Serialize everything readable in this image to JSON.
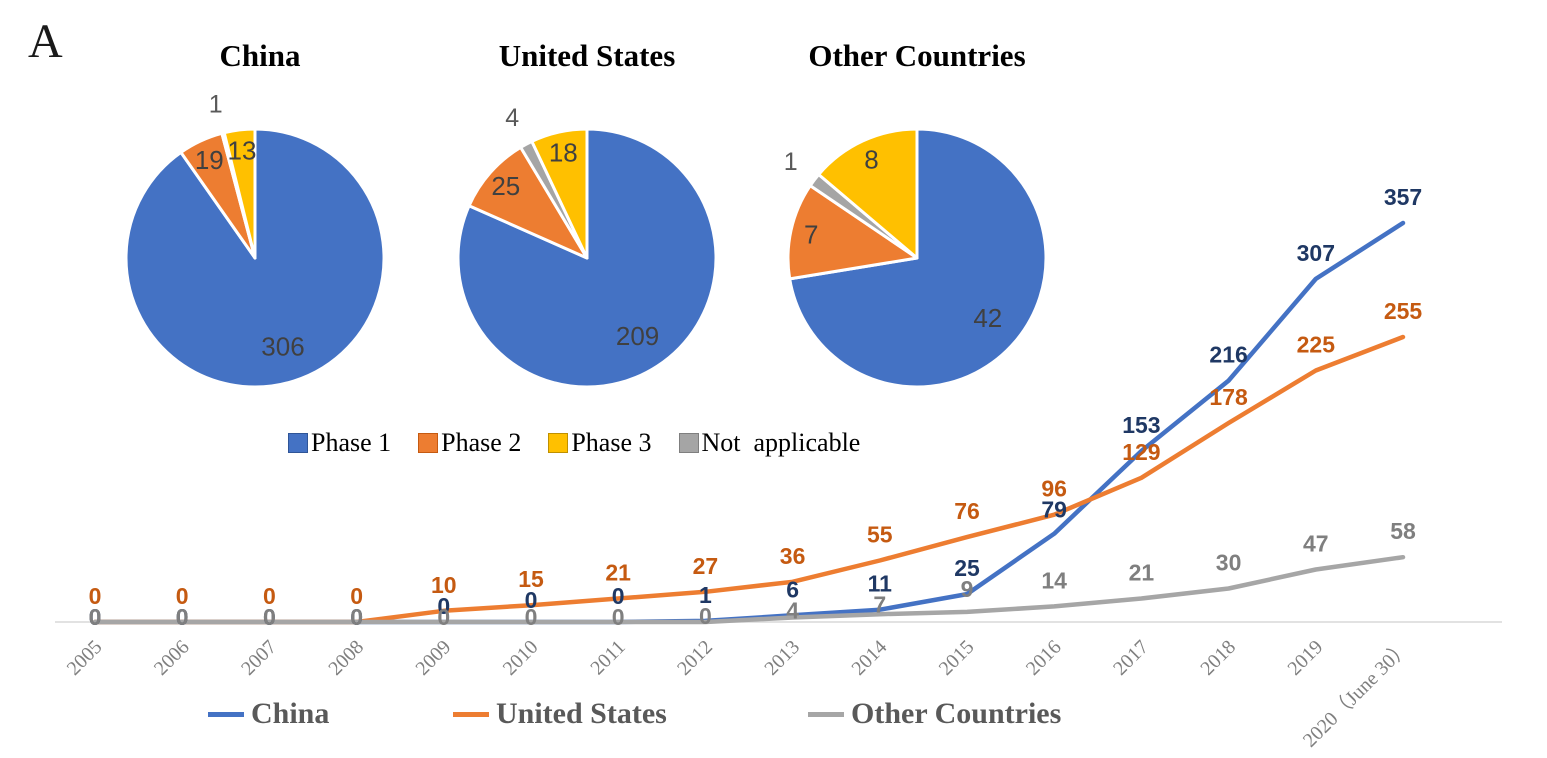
{
  "panel_label": "A",
  "pie_legend": {
    "items": [
      {
        "label": "Phase 1",
        "color": "#4472C4",
        "border": "#2F5597"
      },
      {
        "label": "Phase 2",
        "color": "#ED7D31",
        "border": "#C55A11"
      },
      {
        "label": "Phase 3",
        "color": "#FFC000",
        "border": "#BF9000"
      },
      {
        "label": "Not  applicable",
        "color": "#A5A5A5",
        "border": "#7F7F7F"
      }
    ]
  },
  "chart_data": [
    {
      "type": "pie",
      "title": "China",
      "labels": [
        "Phase 1",
        "Phase 2",
        "Not applicable",
        "Phase 3"
      ],
      "values": [
        306,
        19,
        1,
        13
      ],
      "colors": [
        "#4472C4",
        "#ED7D31",
        "#A5A5A5",
        "#FFC000"
      ],
      "outside_labels": [
        "Not applicable"
      ],
      "label_color": "#404040"
    },
    {
      "type": "pie",
      "title": "United States",
      "labels": [
        "Phase 1",
        "Phase 2",
        "Not applicable",
        "Phase 3"
      ],
      "values": [
        209,
        25,
        4,
        18
      ],
      "colors": [
        "#4472C4",
        "#ED7D31",
        "#A5A5A5",
        "#FFC000"
      ],
      "outside_labels": [
        "Not applicable"
      ],
      "label_color": "#404040"
    },
    {
      "type": "pie",
      "title": "Other Countries",
      "labels": [
        "Phase 1",
        "Phase 2",
        "Not applicable",
        "Phase 3"
      ],
      "values": [
        42,
        7,
        1,
        8
      ],
      "colors": [
        "#4472C4",
        "#ED7D31",
        "#A5A5A5",
        "#FFC000"
      ],
      "outside_labels": [
        "Not applicable"
      ],
      "label_color": "#404040"
    },
    {
      "type": "line",
      "categories": [
        "2005",
        "2006",
        "2007",
        "2008",
        "2009",
        "2010",
        "2011",
        "2012",
        "2013",
        "2014",
        "2015",
        "2016",
        "2017",
        "2018",
        "2019",
        "2020（June 30）"
      ],
      "series": [
        {
          "name": "China",
          "color": "#4472C4",
          "label_color": "#1F3864",
          "values": [
            0,
            0,
            0,
            0,
            0,
            0,
            0,
            1,
            6,
            11,
            25,
            79,
            153,
            216,
            307,
            357
          ]
        },
        {
          "name": "United States",
          "color": "#ED7D31",
          "label_color": "#C55A11",
          "values": [
            0,
            0,
            0,
            0,
            10,
            15,
            21,
            27,
            36,
            55,
            76,
            96,
            129,
            178,
            225,
            255
          ]
        },
        {
          "name": "Other Countries",
          "color": "#A6A6A6",
          "label_color": "#7F7F7F",
          "values": [
            0,
            0,
            0,
            0,
            0,
            0,
            0,
            0,
            4,
            7,
            9,
            14,
            21,
            30,
            47,
            58
          ]
        }
      ],
      "ylim": [
        0,
        420
      ],
      "grid": false,
      "data_labels": true,
      "x_axis_color": "#D9D9D9",
      "tick_label_color": "#7F7F7F",
      "legend_position": "bottom"
    }
  ]
}
